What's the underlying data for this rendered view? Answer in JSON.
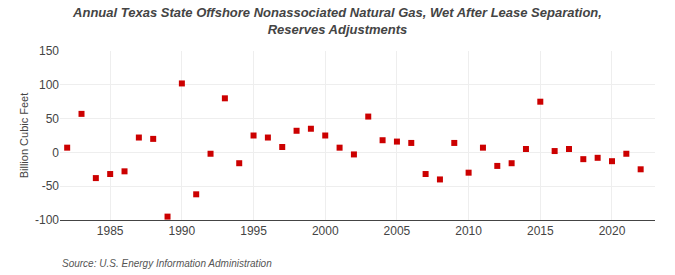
{
  "chart_data": {
    "type": "scatter",
    "title": "Annual Texas State Offshore Nonassociated Natural Gas, Wet After Lease Separation,\nReserves Adjustments",
    "ylabel": "Billion Cubic Feet",
    "annotations": [
      "Source: U.S. Energy Information Administration"
    ],
    "x": [
      1982,
      1983,
      1984,
      1985,
      1986,
      1987,
      1988,
      1989,
      1990,
      1991,
      1992,
      1993,
      1994,
      1995,
      1996,
      1997,
      1998,
      1999,
      2000,
      2001,
      2002,
      2003,
      2004,
      2005,
      2006,
      2007,
      2008,
      2009,
      2010,
      2011,
      2012,
      2013,
      2014,
      2015,
      2016,
      2017,
      2018,
      2019,
      2020,
      2021,
      2022
    ],
    "values": [
      7,
      57,
      -38,
      -32,
      -28,
      22,
      20,
      -95,
      102,
      -62,
      -2,
      80,
      -16,
      25,
      22,
      8,
      32,
      35,
      25,
      7,
      -3,
      53,
      18,
      16,
      14,
      -32,
      -40,
      14,
      -30,
      7,
      -20,
      -16,
      5,
      75,
      2,
      5,
      -10,
      -8,
      -13,
      -2,
      -25
    ],
    "color": "#cc0000",
    "marker": "square",
    "xlim": [
      1981.5,
      2023
    ],
    "xticks": [
      1985,
      1990,
      1995,
      2000,
      2005,
      2010,
      2015,
      2020
    ],
    "ylim": [
      -100,
      150
    ],
    "yticks": [
      -100,
      -50,
      0,
      50,
      100,
      150
    ],
    "grid": true
  }
}
